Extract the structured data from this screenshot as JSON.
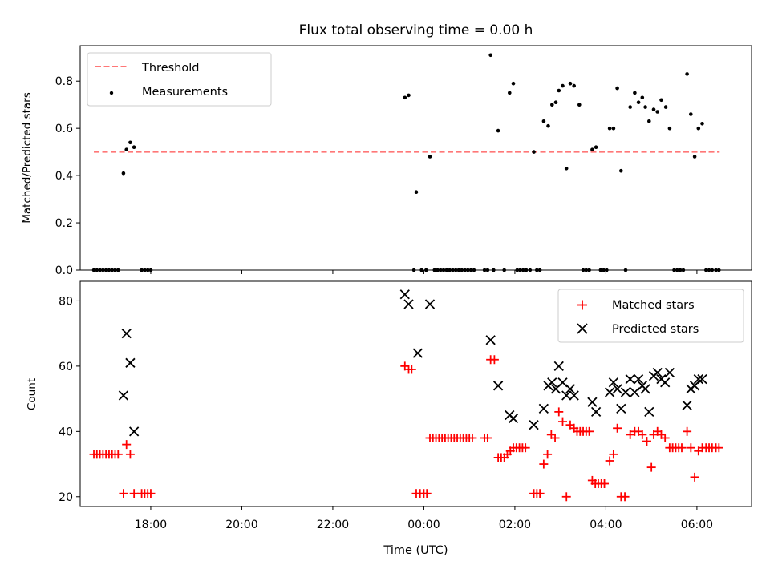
{
  "chart_data": [
    {
      "type": "scatter",
      "title": "Flux total observing time = 0.00 h",
      "xlabel": "",
      "ylabel": "Matched/Predicted stars",
      "xlim": [
        "16:27",
        "07:12"
      ],
      "ylim": [
        0,
        0.95
      ],
      "yticks": [
        0.0,
        0.2,
        0.4,
        0.6,
        0.8
      ],
      "ytick_labels": [
        "0.0",
        "0.2",
        "0.4",
        "0.6",
        "0.8"
      ],
      "legend_position": "top-left",
      "threshold": {
        "name": "Threshold",
        "value": 0.5,
        "x_range": [
          "16:45",
          "06:30"
        ],
        "color": "#ff7777",
        "style": "dashed"
      },
      "series": [
        {
          "name": "Measurements",
          "color": "#000000",
          "marker": "dot",
          "points": [
            [
              "16:45",
              0
            ],
            [
              "16:49",
              0
            ],
            [
              "16:53",
              0
            ],
            [
              "16:57",
              0
            ],
            [
              "17:01",
              0
            ],
            [
              "17:05",
              0
            ],
            [
              "17:09",
              0
            ],
            [
              "17:13",
              0
            ],
            [
              "17:17",
              0
            ],
            [
              "17:24",
              0.41
            ],
            [
              "17:28",
              0.51
            ],
            [
              "17:33",
              0.54
            ],
            [
              "17:38",
              0.52
            ],
            [
              "17:48",
              0
            ],
            [
              "17:52",
              0
            ],
            [
              "17:56",
              0
            ],
            [
              "18:00",
              0
            ],
            [
              "23:35",
              0.73
            ],
            [
              "23:40",
              0.74
            ],
            [
              "23:47",
              0
            ],
            [
              "23:50",
              0.33
            ],
            [
              "23:57",
              0
            ],
            [
              "00:03",
              0
            ],
            [
              "00:08",
              0.48
            ],
            [
              "00:14",
              0
            ],
            [
              "00:18",
              0
            ],
            [
              "00:22",
              0
            ],
            [
              "00:26",
              0
            ],
            [
              "00:30",
              0
            ],
            [
              "00:34",
              0
            ],
            [
              "00:38",
              0
            ],
            [
              "00:42",
              0
            ],
            [
              "00:46",
              0
            ],
            [
              "00:50",
              0
            ],
            [
              "00:54",
              0
            ],
            [
              "00:58",
              0
            ],
            [
              "01:02",
              0
            ],
            [
              "01:06",
              0
            ],
            [
              "01:20",
              0
            ],
            [
              "01:24",
              0
            ],
            [
              "01:28",
              0.91
            ],
            [
              "01:32",
              0
            ],
            [
              "01:38",
              0.59
            ],
            [
              "01:46",
              0
            ],
            [
              "01:53",
              0.75
            ],
            [
              "01:58",
              0.79
            ],
            [
              "02:03",
              0
            ],
            [
              "02:07",
              0
            ],
            [
              "02:11",
              0
            ],
            [
              "02:15",
              0
            ],
            [
              "02:20",
              0
            ],
            [
              "02:25",
              0.5
            ],
            [
              "02:29",
              0
            ],
            [
              "02:33",
              0
            ],
            [
              "02:38",
              0.63
            ],
            [
              "02:44",
              0.61
            ],
            [
              "02:49",
              0.7
            ],
            [
              "02:54",
              0.71
            ],
            [
              "02:58",
              0.76
            ],
            [
              "03:03",
              0.78
            ],
            [
              "03:08",
              0.43
            ],
            [
              "03:13",
              0.79
            ],
            [
              "03:18",
              0.78
            ],
            [
              "03:25",
              0.7
            ],
            [
              "03:30",
              0
            ],
            [
              "03:34",
              0
            ],
            [
              "03:38",
              0
            ],
            [
              "03:42",
              0.51
            ],
            [
              "03:47",
              0.52
            ],
            [
              "03:53",
              0
            ],
            [
              "03:57",
              0
            ],
            [
              "04:01",
              0
            ],
            [
              "04:05",
              0.6
            ],
            [
              "04:10",
              0.6
            ],
            [
              "04:15",
              0.77
            ],
            [
              "04:20",
              0.42
            ],
            [
              "04:26",
              0
            ],
            [
              "04:32",
              0.69
            ],
            [
              "04:38",
              0.75
            ],
            [
              "04:43",
              0.71
            ],
            [
              "04:48",
              0.73
            ],
            [
              "04:52",
              0.69
            ],
            [
              "04:57",
              0.63
            ],
            [
              "05:03",
              0.68
            ],
            [
              "05:08",
              0.67
            ],
            [
              "05:13",
              0.72
            ],
            [
              "05:19",
              0.69
            ],
            [
              "05:24",
              0.6
            ],
            [
              "05:30",
              0
            ],
            [
              "05:34",
              0
            ],
            [
              "05:38",
              0
            ],
            [
              "05:42",
              0
            ],
            [
              "05:47",
              0.83
            ],
            [
              "05:52",
              0.66
            ],
            [
              "05:57",
              0.48
            ],
            [
              "06:02",
              0.6
            ],
            [
              "06:07",
              0.62
            ],
            [
              "06:12",
              0
            ],
            [
              "06:16",
              0
            ],
            [
              "06:20",
              0
            ],
            [
              "06:25",
              0
            ],
            [
              "06:29",
              0
            ]
          ]
        }
      ]
    },
    {
      "type": "scatter",
      "title": "",
      "xlabel": "Time (UTC)",
      "ylabel": "Count",
      "xlim": [
        "16:27",
        "07:12"
      ],
      "ylim": [
        17,
        86
      ],
      "xticks": [
        "18:00",
        "20:00",
        "22:00",
        "00:00",
        "02:00",
        "04:00",
        "06:00"
      ],
      "yticks": [
        20,
        40,
        60,
        80
      ],
      "ytick_labels": [
        "20",
        "40",
        "60",
        "80"
      ],
      "legend_position": "top-right",
      "series": [
        {
          "name": "Matched stars",
          "color": "#ff0000",
          "marker": "plus",
          "points": [
            [
              "16:45",
              33
            ],
            [
              "16:49",
              33
            ],
            [
              "16:53",
              33
            ],
            [
              "16:57",
              33
            ],
            [
              "17:01",
              33
            ],
            [
              "17:05",
              33
            ],
            [
              "17:09",
              33
            ],
            [
              "17:13",
              33
            ],
            [
              "17:17",
              33
            ],
            [
              "17:24",
              21
            ],
            [
              "17:28",
              36
            ],
            [
              "17:33",
              33
            ],
            [
              "17:38",
              21
            ],
            [
              "17:48",
              21
            ],
            [
              "17:52",
              21
            ],
            [
              "17:56",
              21
            ],
            [
              "18:00",
              21
            ],
            [
              "23:35",
              60
            ],
            [
              "23:40",
              59
            ],
            [
              "23:44",
              59
            ],
            [
              "23:50",
              21
            ],
            [
              "23:55",
              21
            ],
            [
              "00:00",
              21
            ],
            [
              "00:04",
              21
            ],
            [
              "00:08",
              38
            ],
            [
              "00:12",
              38
            ],
            [
              "00:16",
              38
            ],
            [
              "00:20",
              38
            ],
            [
              "00:24",
              38
            ],
            [
              "00:28",
              38
            ],
            [
              "00:32",
              38
            ],
            [
              "00:36",
              38
            ],
            [
              "00:40",
              38
            ],
            [
              "00:44",
              38
            ],
            [
              "00:48",
              38
            ],
            [
              "00:52",
              38
            ],
            [
              "00:56",
              38
            ],
            [
              "01:00",
              38
            ],
            [
              "01:04",
              38
            ],
            [
              "01:20",
              38
            ],
            [
              "01:24",
              38
            ],
            [
              "01:28",
              62
            ],
            [
              "01:33",
              62
            ],
            [
              "01:38",
              32
            ],
            [
              "01:42",
              32
            ],
            [
              "01:46",
              32
            ],
            [
              "01:50",
              33
            ],
            [
              "01:54",
              34
            ],
            [
              "01:58",
              35
            ],
            [
              "02:02",
              35
            ],
            [
              "02:06",
              35
            ],
            [
              "02:10",
              35
            ],
            [
              "02:14",
              35
            ],
            [
              "02:25",
              21
            ],
            [
              "02:29",
              21
            ],
            [
              "02:33",
              21
            ],
            [
              "02:38",
              30
            ],
            [
              "02:43",
              33
            ],
            [
              "02:48",
              39
            ],
            [
              "02:53",
              38
            ],
            [
              "02:58",
              46
            ],
            [
              "03:03",
              43
            ],
            [
              "03:08",
              20
            ],
            [
              "03:13",
              42
            ],
            [
              "03:18",
              41
            ],
            [
              "03:22",
              40
            ],
            [
              "03:26",
              40
            ],
            [
              "03:30",
              40
            ],
            [
              "03:34",
              40
            ],
            [
              "03:38",
              40
            ],
            [
              "03:42",
              25
            ],
            [
              "03:46",
              24
            ],
            [
              "03:50",
              24
            ],
            [
              "03:54",
              24
            ],
            [
              "03:58",
              24
            ],
            [
              "04:05",
              31
            ],
            [
              "04:10",
              33
            ],
            [
              "04:15",
              41
            ],
            [
              "04:20",
              20
            ],
            [
              "04:25",
              20
            ],
            [
              "04:32",
              39
            ],
            [
              "04:38",
              40
            ],
            [
              "04:43",
              40
            ],
            [
              "04:48",
              39
            ],
            [
              "04:54",
              37
            ],
            [
              "05:00",
              29
            ],
            [
              "05:03",
              39
            ],
            [
              "05:08",
              40
            ],
            [
              "05:13",
              39
            ],
            [
              "05:18",
              38
            ],
            [
              "05:24",
              35
            ],
            [
              "05:28",
              35
            ],
            [
              "05:32",
              35
            ],
            [
              "05:36",
              35
            ],
            [
              "05:40",
              35
            ],
            [
              "05:47",
              40
            ],
            [
              "05:52",
              35
            ],
            [
              "05:57",
              26
            ],
            [
              "06:02",
              34
            ],
            [
              "06:07",
              35
            ],
            [
              "06:12",
              35
            ],
            [
              "06:16",
              35
            ],
            [
              "06:20",
              35
            ],
            [
              "06:25",
              35
            ],
            [
              "06:29",
              35
            ]
          ]
        },
        {
          "name": "Predicted stars",
          "color": "#000000",
          "marker": "x",
          "points": [
            [
              "17:24",
              51
            ],
            [
              "17:28",
              70
            ],
            [
              "17:33",
              61
            ],
            [
              "17:38",
              40
            ],
            [
              "23:35",
              82
            ],
            [
              "23:40",
              79
            ],
            [
              "23:52",
              64
            ],
            [
              "00:08",
              79
            ],
            [
              "01:28",
              68
            ],
            [
              "01:38",
              54
            ],
            [
              "01:53",
              45
            ],
            [
              "01:58",
              44
            ],
            [
              "02:25",
              42
            ],
            [
              "02:38",
              47
            ],
            [
              "02:44",
              54
            ],
            [
              "02:49",
              55
            ],
            [
              "02:54",
              53
            ],
            [
              "02:58",
              60
            ],
            [
              "03:03",
              55
            ],
            [
              "03:08",
              51
            ],
            [
              "03:13",
              53
            ],
            [
              "03:18",
              51
            ],
            [
              "03:42",
              49
            ],
            [
              "03:47",
              46
            ],
            [
              "04:05",
              52
            ],
            [
              "04:10",
              55
            ],
            [
              "04:15",
              53
            ],
            [
              "04:20",
              47
            ],
            [
              "04:26",
              52
            ],
            [
              "04:32",
              56
            ],
            [
              "04:38",
              52
            ],
            [
              "04:43",
              56
            ],
            [
              "04:48",
              54
            ],
            [
              "04:52",
              53
            ],
            [
              "04:57",
              46
            ],
            [
              "05:03",
              57
            ],
            [
              "05:08",
              58
            ],
            [
              "05:13",
              56
            ],
            [
              "05:18",
              55
            ],
            [
              "05:24",
              58
            ],
            [
              "05:47",
              48
            ],
            [
              "05:52",
              53
            ],
            [
              "05:57",
              54
            ],
            [
              "06:02",
              56
            ],
            [
              "06:07",
              56
            ]
          ]
        }
      ]
    }
  ]
}
